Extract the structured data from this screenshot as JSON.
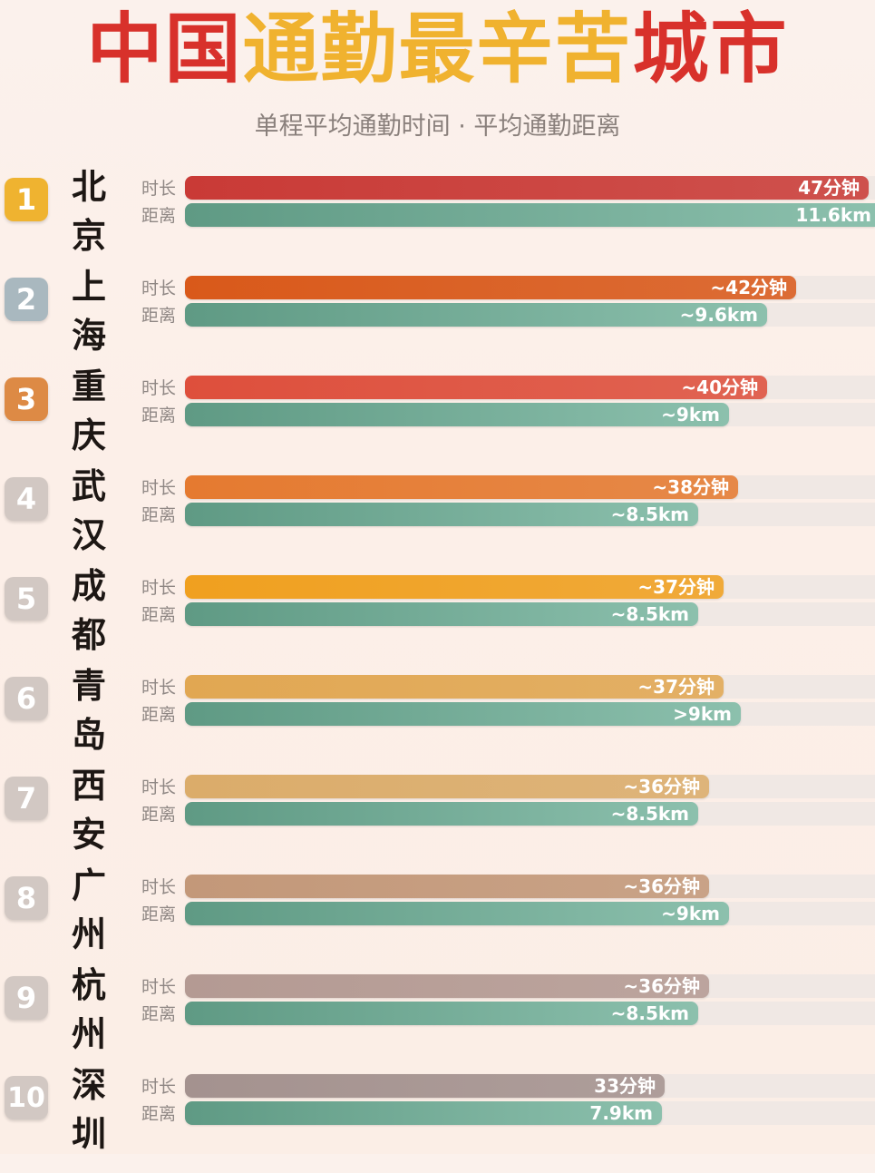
{
  "header": {
    "title_part1": "中国",
    "title_part2": "通勤最辛苦",
    "title_part3": "城市",
    "subtitle": "单程平均通勤时间 · 平均通勤距离"
  },
  "labels": {
    "time": "时长",
    "distance": "距离"
  },
  "colors": {
    "distance_bar": "#5f9a84",
    "title_red": "#d8312b",
    "title_gold": "#f0b22f"
  },
  "chart_data": {
    "type": "bar",
    "orientation": "horizontal",
    "title": "中国通勤最辛苦城市",
    "subtitle": "单程平均通勤时间 · 平均通勤距离",
    "categories": [
      "北京",
      "上海",
      "重庆",
      "武汉",
      "成都",
      "青岛",
      "西安",
      "广州",
      "杭州",
      "深圳"
    ],
    "series": [
      {
        "name": "时长",
        "unit": "分钟",
        "values": [
          47,
          42,
          40,
          38,
          37,
          37,
          36,
          36,
          36,
          33
        ],
        "labels": [
          "47分钟",
          "~42分钟",
          "~40分钟",
          "~38分钟",
          "~37分钟",
          "~37分钟",
          "~36分钟",
          "~36分钟",
          "~36分钟",
          "33分钟"
        ],
        "colors": [
          "#c93a36",
          "#d9591a",
          "#de4f3c",
          "#e57a30",
          "#f0a01f",
          "#e1a752",
          "#dbac6a",
          "#c39879",
          "#b49a93",
          "#a4928f"
        ]
      },
      {
        "name": "距离",
        "unit": "km",
        "values": [
          11.6,
          9.6,
          9,
          8.5,
          8.5,
          9,
          8.5,
          9,
          8.5,
          7.9
        ],
        "labels": [
          "11.6km",
          "~9.6km",
          "~9km",
          "~8.5km",
          "~8.5km",
          ">9km",
          "~8.5km",
          "~9km",
          "~8.5km",
          "7.9km"
        ]
      }
    ]
  },
  "rows": [
    {
      "rank": "1",
      "city": "北京",
      "badge_color": "#efb330"
    },
    {
      "rank": "2",
      "city": "上海",
      "badge_color": "#a9b8bf"
    },
    {
      "rank": "3",
      "city": "重庆",
      "badge_color": "#dd8a45"
    },
    {
      "rank": "4",
      "city": "武汉",
      "badge_color": "#d2c8c3"
    },
    {
      "rank": "5",
      "city": "成都",
      "badge_color": "#d2c8c3"
    },
    {
      "rank": "6",
      "city": "青岛",
      "badge_color": "#d2c8c3"
    },
    {
      "rank": "7",
      "city": "西安",
      "badge_color": "#d2c8c3"
    },
    {
      "rank": "8",
      "city": "广州",
      "badge_color": "#d2c8c3"
    },
    {
      "rank": "9",
      "city": "杭州",
      "badge_color": "#d2c8c3"
    },
    {
      "rank": "10",
      "city": "深圳",
      "badge_color": "#d2c8c3"
    }
  ]
}
